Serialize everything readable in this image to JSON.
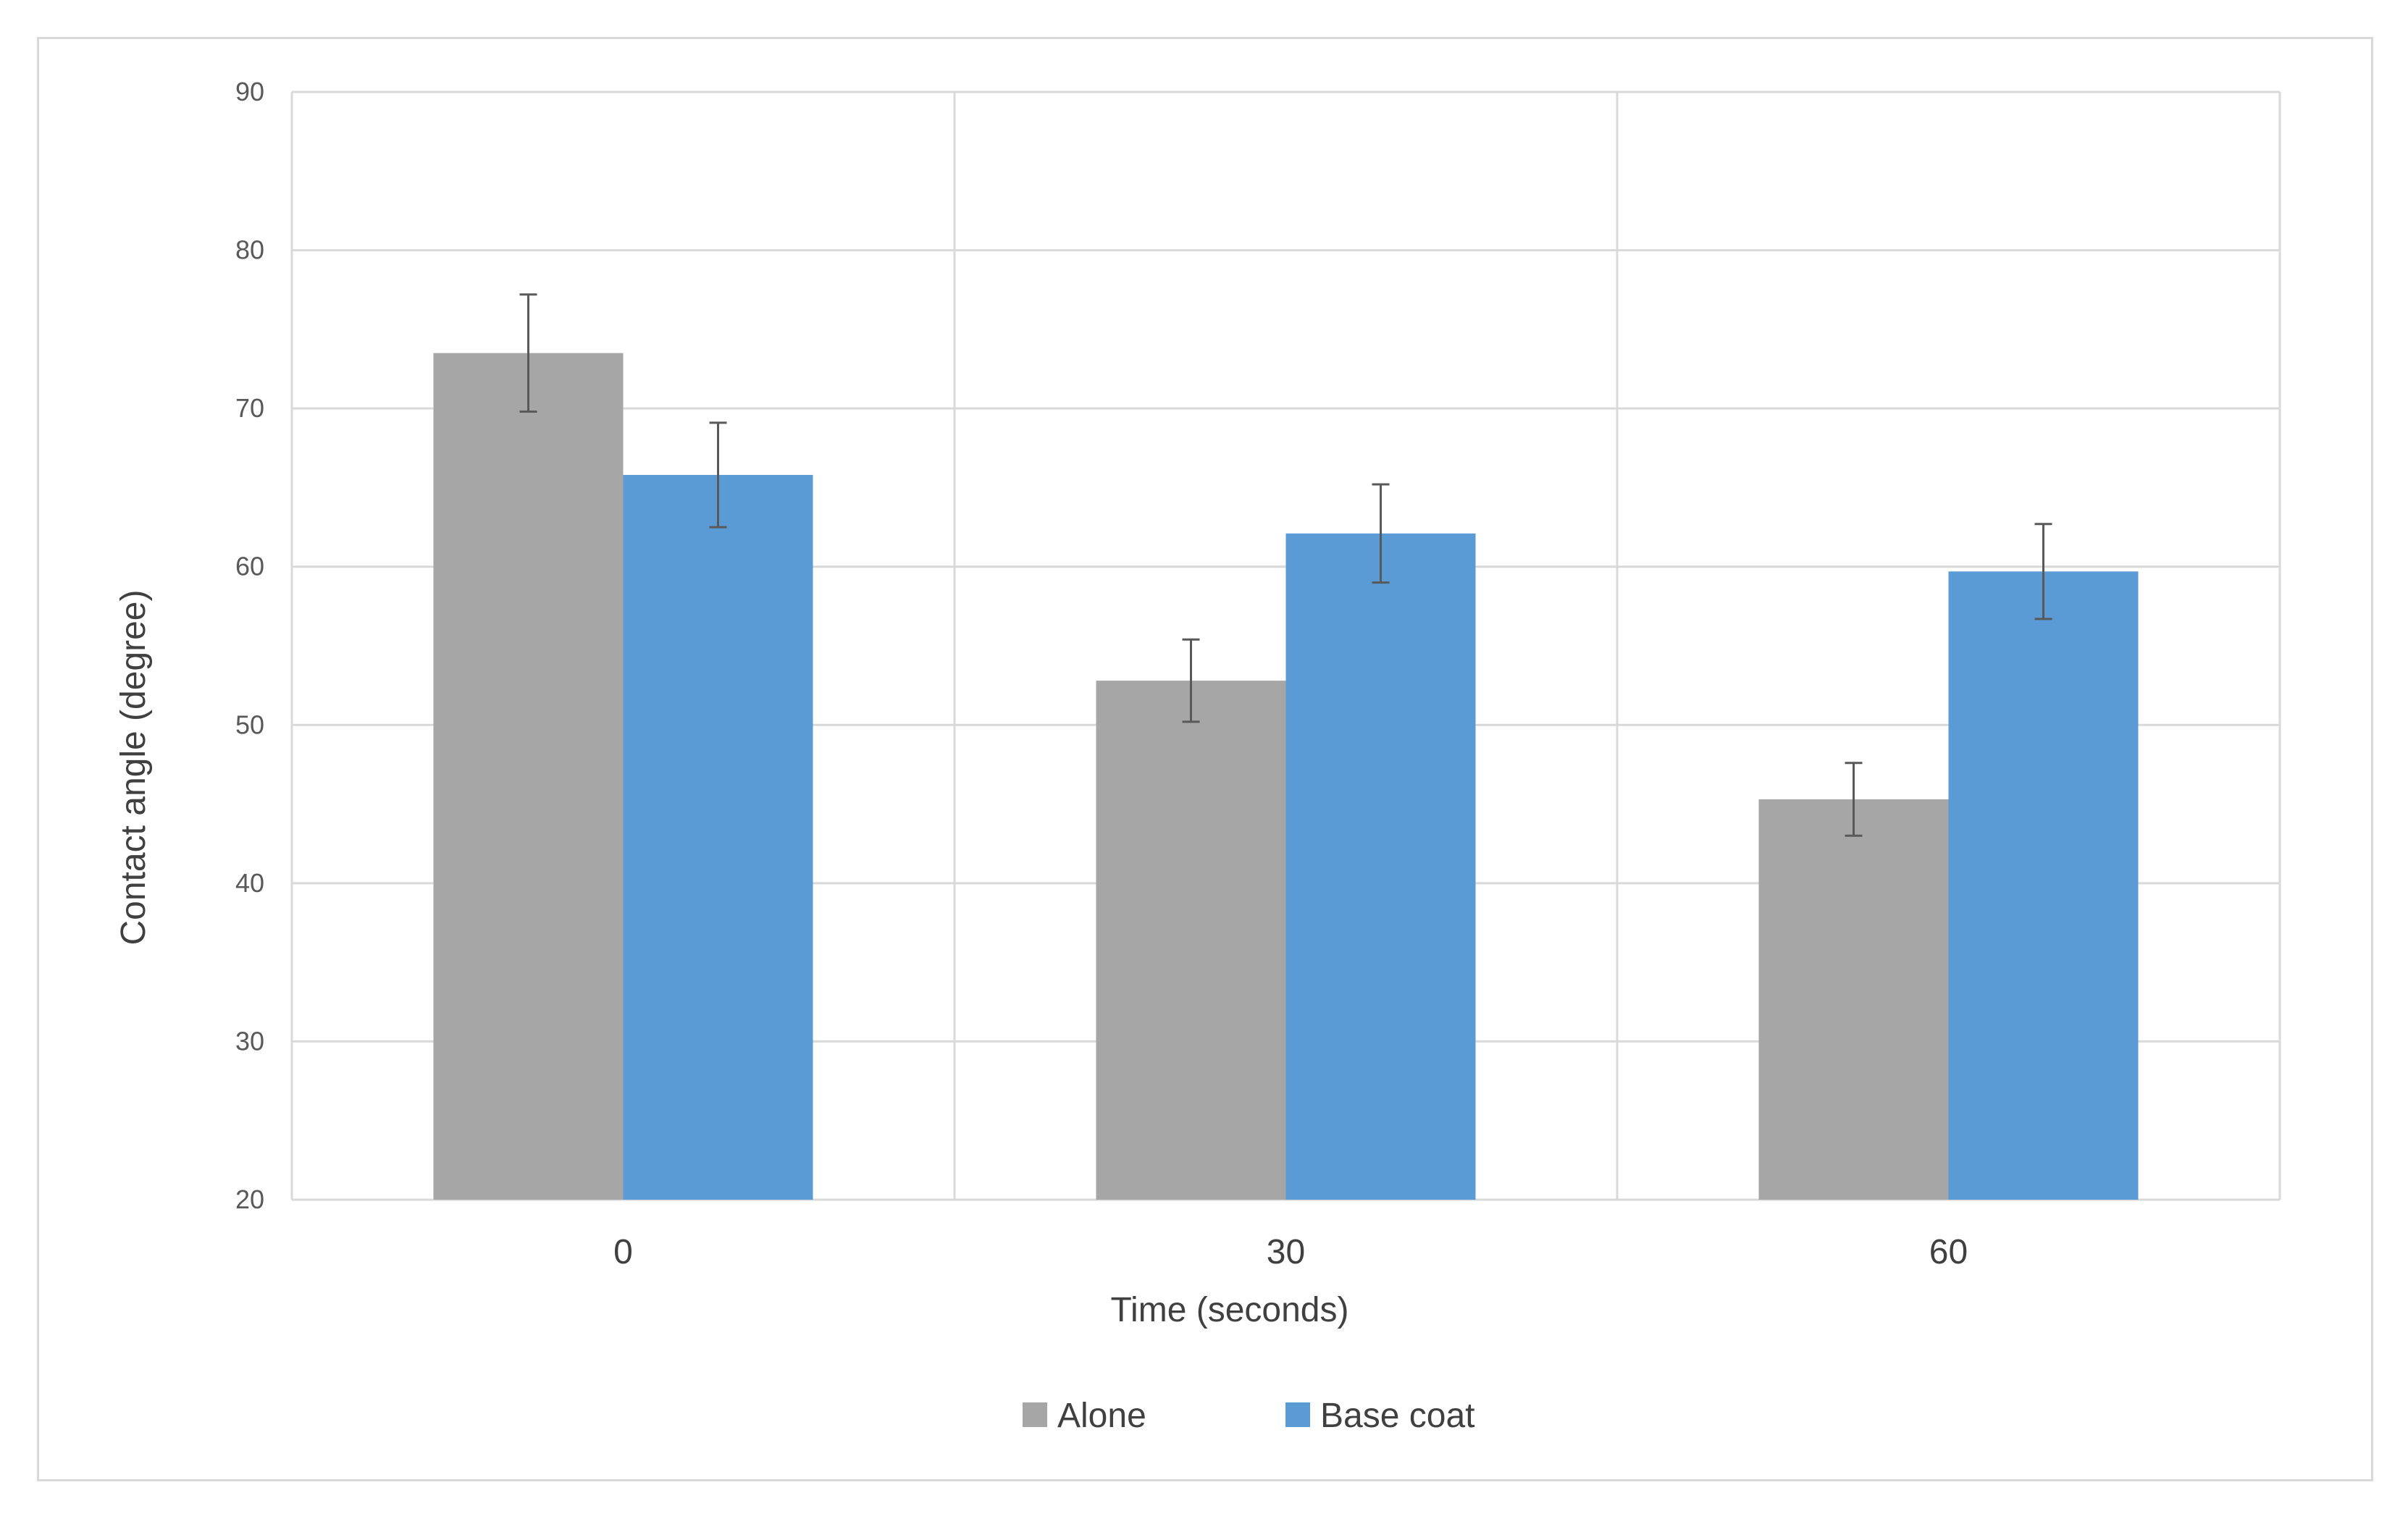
{
  "chart_data": {
    "type": "bar",
    "title": "",
    "xlabel": "Time (seconds)",
    "ylabel": "Contact angle (degree)",
    "categories": [
      "0",
      "30",
      "60"
    ],
    "ylim": [
      20,
      90
    ],
    "yticks": [
      20,
      30,
      40,
      50,
      60,
      70,
      80,
      90
    ],
    "grid": true,
    "legend": "bottom",
    "series": [
      {
        "name": "Alone",
        "color": "#a6a6a6",
        "values": [
          73.5,
          52.8,
          45.3
        ],
        "errors": [
          3.7,
          2.6,
          2.3
        ]
      },
      {
        "name": "Base coat",
        "color": "#5b9bd5",
        "values": [
          65.8,
          62.1,
          59.7
        ],
        "errors": [
          3.3,
          3.1,
          3.0
        ]
      }
    ]
  }
}
